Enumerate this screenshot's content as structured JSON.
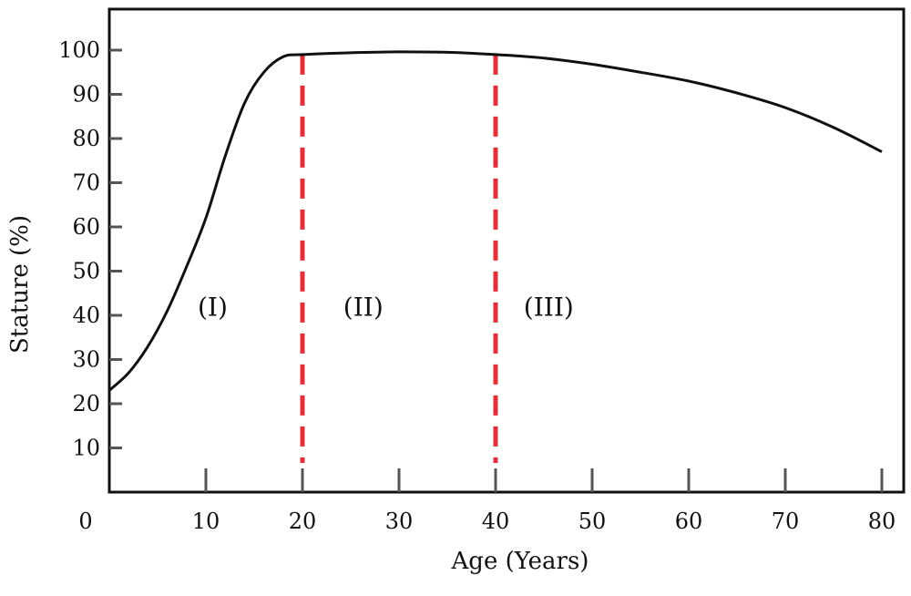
{
  "chart_data": {
    "type": "line",
    "xlabel": "Age (Years)",
    "ylabel": "Stature (%)",
    "xlim": [
      0,
      82
    ],
    "ylim": [
      0,
      105
    ],
    "x_ticks": [
      0,
      10,
      20,
      30,
      40,
      50,
      60,
      70,
      80
    ],
    "y_ticks": [
      10,
      20,
      30,
      40,
      50,
      60,
      70,
      80,
      90,
      100
    ],
    "grid": false,
    "series": [
      {
        "x": [
          0,
          2,
          4,
          6,
          8,
          10,
          12,
          14,
          16,
          18,
          20,
          25,
          30,
          35,
          40,
          45,
          50,
          55,
          60,
          65,
          70,
          75,
          80
        ],
        "y": [
          23,
          27,
          33,
          41,
          51,
          62,
          76,
          88,
          95,
          98.5,
          99,
          99.4,
          99.6,
          99.5,
          99,
          98.2,
          96.8,
          95,
          93,
          90.3,
          87,
          82.5,
          77
        ],
        "color": "#111111"
      }
    ],
    "vertical_markers": [
      {
        "x": 20,
        "color": "#e0303c",
        "style": "dashed"
      },
      {
        "x": 40,
        "color": "#e0303c",
        "style": "dashed"
      }
    ],
    "annotations": [
      {
        "text": "(I)",
        "x": 10.7,
        "y": 42
      },
      {
        "text": "(II)",
        "x": 26.3,
        "y": 42
      },
      {
        "text": "(III)",
        "x": 45.5,
        "y": 42
      }
    ]
  }
}
